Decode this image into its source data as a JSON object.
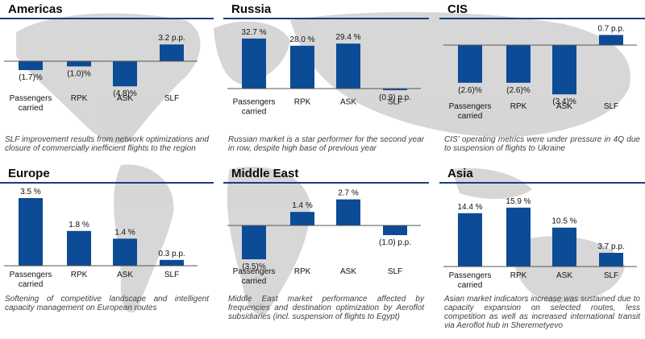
{
  "colors": {
    "bar": "#0c4b95",
    "rule": "#173f80",
    "map": "#c8c8c8"
  },
  "panels": [
    {
      "title": "Americas",
      "caption": "SLF improvement results from network optimizations and closure of commercially inefficient flights to the region",
      "chart_data": {
        "type": "bar",
        "categories": [
          "Passengers\ncarried",
          "RPK",
          "ASK",
          "SLF"
        ],
        "values": [
          -1.7,
          -1.0,
          -4.8,
          3.2
        ],
        "labels": [
          "(1.7)%",
          "(1.0)%",
          "(4.8)%",
          "3.2 p.p."
        ]
      }
    },
    {
      "title": "Russia",
      "caption": "Russian market is a star performer for the second year in row, despite high base of previous year",
      "chart_data": {
        "type": "bar",
        "categories": [
          "Passengers\ncarried",
          "RPK",
          "ASK",
          "SLF"
        ],
        "values": [
          32.7,
          28.0,
          29.4,
          -0.9
        ],
        "labels": [
          "32.7 %",
          "28.0 %",
          "29.4 %",
          "(0.9) p.p."
        ]
      }
    },
    {
      "title": "CIS",
      "caption": "CIS' operating metrics were under pressure in 4Q due to suspension of flights to Ukraine",
      "chart_data": {
        "type": "bar",
        "categories": [
          "Passengers\ncarried",
          "RPK",
          "ASK",
          "SLF"
        ],
        "values": [
          -2.6,
          -2.6,
          -3.4,
          0.7
        ],
        "labels": [
          "(2.6)%",
          "(2.6)%",
          "(3.4)%",
          "0.7 p.p."
        ]
      }
    },
    {
      "title": "Europe",
      "caption": "Softening of competitive landscape and intelligent capacity management on European routes",
      "chart_data": {
        "type": "bar",
        "categories": [
          "Passengers\ncarried",
          "RPK",
          "ASK",
          "SLF"
        ],
        "values": [
          3.5,
          1.8,
          1.4,
          0.3
        ],
        "labels": [
          "3.5 %",
          "1.8 %",
          "1.4 %",
          "0.3 p.p."
        ]
      }
    },
    {
      "title": "Middle East",
      "caption": "Middle East market performance affected by frequencies and destination optimization by Aeroflot subsidiaries (incl. suspension of flights to Egypt)",
      "chart_data": {
        "type": "bar",
        "categories": [
          "Passengers\ncarried",
          "RPK",
          "ASK",
          "SLF"
        ],
        "values": [
          -3.5,
          1.4,
          2.7,
          -1.0
        ],
        "labels": [
          "(3.5)%",
          "1.4 %",
          "2.7 %",
          "(1.0) p.p."
        ]
      }
    },
    {
      "title": "Asia",
      "caption": "Asian market indicators increase was sustained due to capacity expansion on selected routes, less competition as well as increased international transit via Aeroflot hub in Sheremetyevo",
      "chart_data": {
        "type": "bar",
        "categories": [
          "Passengers\ncarried",
          "RPK",
          "ASK",
          "SLF"
        ],
        "values": [
          14.4,
          15.9,
          10.5,
          3.7
        ],
        "labels": [
          "14.4 %",
          "15.9 %",
          "10.5 %",
          "3.7 p.p."
        ]
      }
    }
  ]
}
